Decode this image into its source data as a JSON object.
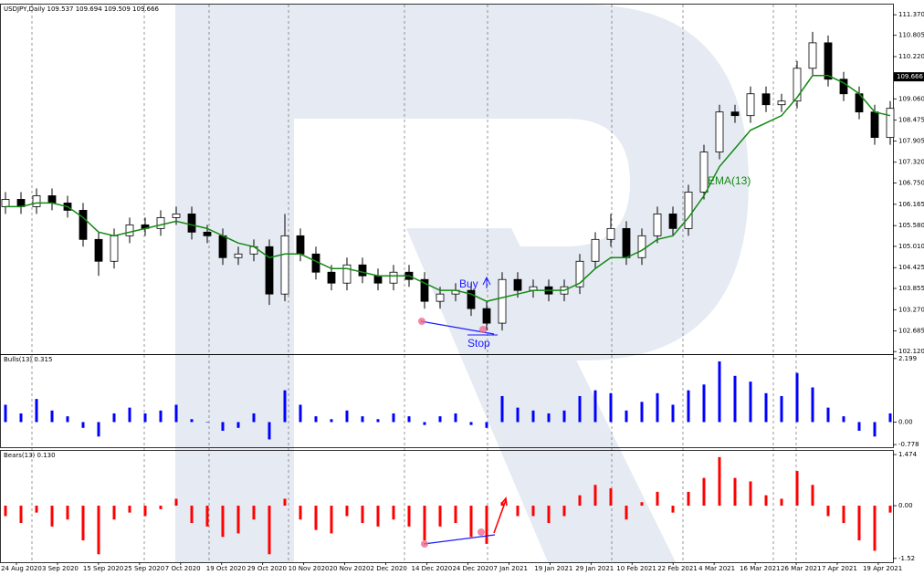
{
  "chart_data": [
    {
      "type": "candlestick",
      "title": "USDJPY,Daily  109.537 109.694 109.509 109.666",
      "open": [
        106.1,
        106.3,
        106.1,
        106.4,
        106.2,
        106.0,
        105.2,
        104.6,
        105.3,
        105.6,
        105.5,
        105.8,
        105.9,
        105.4,
        105.3,
        104.7,
        104.8,
        105.0,
        103.7,
        105.3,
        104.8,
        104.3,
        104.0,
        104.5,
        104.2,
        104.0,
        104.3,
        104.1,
        103.5,
        103.7,
        103.8,
        103.3,
        102.9,
        104.1,
        103.8,
        103.9,
        103.7,
        103.9,
        104.6,
        105.2,
        105.5,
        104.7,
        105.3,
        105.9,
        105.5,
        106.5,
        107.6,
        108.7,
        108.6,
        109.2,
        108.9,
        109.0,
        109.9,
        110.6,
        109.6,
        109.2,
        108.7,
        108.0
      ],
      "high": [
        106.5,
        106.5,
        106.6,
        106.6,
        106.4,
        106.2,
        105.4,
        105.5,
        105.8,
        105.8,
        106.0,
        106.1,
        106.1,
        105.6,
        105.5,
        105.0,
        105.2,
        105.2,
        105.9,
        105.5,
        105.0,
        104.5,
        104.7,
        104.7,
        104.4,
        104.5,
        104.5,
        104.3,
        103.9,
        104.0,
        104.0,
        103.5,
        104.3,
        104.3,
        104.1,
        104.1,
        104.1,
        104.8,
        105.4,
        105.9,
        105.7,
        105.5,
        106.1,
        106.1,
        106.7,
        107.8,
        108.9,
        108.9,
        109.4,
        109.4,
        109.2,
        110.1,
        110.9,
        110.8,
        109.8,
        109.4,
        108.9,
        109.0
      ],
      "low": [
        105.9,
        105.9,
        105.9,
        106.0,
        105.8,
        105.0,
        104.2,
        104.4,
        105.1,
        105.3,
        105.3,
        105.6,
        105.2,
        105.1,
        104.5,
        104.5,
        104.6,
        103.4,
        103.5,
        104.6,
        104.1,
        103.8,
        103.8,
        104.0,
        103.8,
        103.8,
        103.9,
        103.3,
        103.3,
        103.5,
        103.1,
        102.7,
        102.7,
        103.6,
        103.6,
        103.5,
        103.5,
        103.7,
        104.4,
        105.0,
        104.5,
        104.5,
        105.1,
        105.3,
        105.3,
        106.3,
        107.4,
        108.4,
        108.4,
        108.7,
        108.7,
        108.8,
        109.7,
        109.4,
        109.0,
        108.5,
        107.8,
        107.8
      ],
      "close": [
        106.3,
        106.1,
        106.4,
        106.2,
        106.0,
        105.2,
        104.6,
        105.3,
        105.6,
        105.5,
        105.8,
        105.9,
        105.4,
        105.3,
        104.7,
        104.8,
        105.0,
        103.7,
        105.3,
        104.8,
        104.3,
        104.0,
        104.5,
        104.2,
        104.0,
        104.3,
        104.1,
        103.5,
        103.7,
        103.8,
        103.3,
        102.9,
        104.1,
        103.8,
        103.9,
        103.7,
        103.9,
        104.6,
        105.2,
        105.5,
        104.7,
        105.3,
        105.9,
        105.5,
        106.5,
        107.6,
        108.7,
        108.6,
        109.2,
        108.9,
        109.0,
        109.9,
        110.6,
        109.6,
        109.2,
        108.7,
        108.0,
        108.8
      ],
      "ema": {
        "name": "EMA(13)",
        "color": "#138a13",
        "values": [
          106.1,
          106.1,
          106.2,
          106.2,
          106.1,
          105.8,
          105.4,
          105.3,
          105.4,
          105.5,
          105.6,
          105.7,
          105.6,
          105.5,
          105.3,
          105.1,
          105.0,
          104.7,
          104.8,
          104.8,
          104.6,
          104.4,
          104.4,
          104.3,
          104.2,
          104.2,
          104.2,
          104.0,
          103.8,
          103.8,
          103.7,
          103.5,
          103.6,
          103.7,
          103.8,
          103.8,
          103.8,
          104.0,
          104.4,
          104.7,
          104.7,
          104.9,
          105.2,
          105.3,
          105.8,
          106.4,
          107.2,
          107.7,
          108.2,
          108.4,
          108.6,
          109.1,
          109.7,
          109.7,
          109.5,
          109.2,
          108.7,
          108.6
        ]
      },
      "ylim": [
        102.05,
        111.65
      ],
      "yticks": [
        {
          "value": 111.37,
          "label": "111.370"
        },
        {
          "value": 110.805,
          "label": "110.805"
        },
        {
          "value": 110.22,
          "label": "110.220"
        },
        {
          "value": 109.06,
          "label": "109.060"
        },
        {
          "value": 108.475,
          "label": "108.475"
        },
        {
          "value": 107.905,
          "label": "107.905"
        },
        {
          "value": 107.32,
          "label": "107.320"
        },
        {
          "value": 106.75,
          "label": "106.750"
        },
        {
          "value": 106.165,
          "label": "106.165"
        },
        {
          "value": 105.58,
          "label": "105.580"
        },
        {
          "value": 105.01,
          "label": "105.010"
        },
        {
          "value": 104.425,
          "label": "104.425"
        },
        {
          "value": 103.855,
          "label": "103.855"
        },
        {
          "value": 103.27,
          "label": "103.270"
        },
        {
          "value": 102.685,
          "label": "102.685"
        },
        {
          "value": 102.12,
          "label": "102.120"
        }
      ],
      "last_price": {
        "value": 109.666,
        "label": "109.666"
      },
      "annotations": {
        "buy": "Buy",
        "stop": "Stop"
      },
      "xlabels": [
        "24 Aug 2020",
        "3 Sep 2020",
        "15 Sep 2020",
        "25 Sep 2020",
        "7 Oct 2020",
        "19 Oct 2020",
        "29 Oct 2020",
        "10 Nov 2020",
        "20 Nov 2020",
        "2 Dec 2020",
        "14 Dec 2020",
        "24 Dec 2020",
        "7 Jan 2021",
        "19 Jan 2021",
        "29 Jan 2021",
        "10 Feb 2021",
        "22 Feb 2021",
        "4 Mar 2021",
        "16 Mar 2021",
        "26 Mar 2021",
        "7 Apr 2021",
        "19 Apr 2021"
      ]
    },
    {
      "type": "bar",
      "title": "Bulls(13) 0.315",
      "color": "#0000ff",
      "values": [
        0.6,
        0.3,
        0.8,
        0.4,
        0.2,
        -0.2,
        -0.5,
        0.3,
        0.5,
        0.3,
        0.4,
        0.6,
        0.1,
        0.0,
        -0.3,
        -0.2,
        0.3,
        -0.6,
        1.1,
        0.6,
        0.2,
        0.1,
        0.4,
        0.2,
        0.1,
        0.3,
        0.2,
        -0.1,
        0.2,
        0.3,
        -0.1,
        -0.2,
        0.9,
        0.5,
        0.4,
        0.3,
        0.4,
        0.9,
        1.1,
        1.0,
        0.4,
        0.7,
        1.0,
        0.6,
        1.1,
        1.3,
        2.1,
        1.6,
        1.4,
        1.0,
        0.9,
        1.7,
        1.2,
        0.5,
        0.2,
        -0.3,
        -0.5,
        0.3
      ],
      "ylim": [
        -0.87,
        2.32
      ],
      "yticks": [
        2.199,
        {
          "value": 0,
          "label": "0.00"
        },
        -0.778
      ]
    },
    {
      "type": "bar",
      "title": "Bears(13) 0.130",
      "color": "#ff0000",
      "values": [
        -0.3,
        -0.5,
        -0.2,
        -0.6,
        -0.4,
        -1.0,
        -1.4,
        -0.4,
        -0.2,
        -0.3,
        -0.1,
        0.2,
        -0.5,
        -0.6,
        -0.9,
        -0.8,
        -0.4,
        -1.4,
        0.2,
        -0.4,
        -0.7,
        -0.8,
        -0.3,
        -0.5,
        -0.6,
        -0.4,
        -0.6,
        -1.0,
        -0.6,
        -0.5,
        -0.9,
        -1.1,
        0.1,
        -0.3,
        -0.3,
        -0.5,
        -0.3,
        0.3,
        0.6,
        0.5,
        -0.4,
        0.1,
        0.4,
        -0.2,
        0.4,
        0.8,
        1.4,
        0.8,
        0.7,
        0.3,
        0.2,
        1.0,
        0.6,
        -0.3,
        -0.5,
        -1.0,
        -1.3,
        -0.2
      ],
      "ylim": [
        -1.63,
        1.58
      ],
      "yticks": [
        1.474,
        {
          "value": 0,
          "label": "0.00"
        },
        -1.52
      ]
    }
  ]
}
